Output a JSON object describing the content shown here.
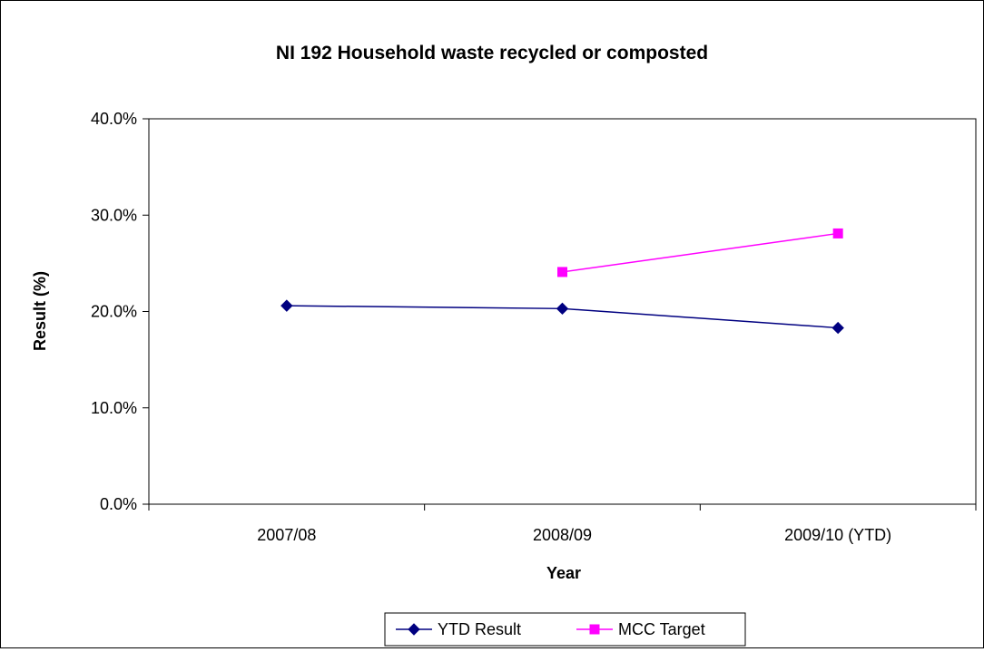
{
  "chart_data": {
    "type": "line",
    "title": "NI 192 Household waste recycled or composted",
    "xlabel": "Year",
    "ylabel": "Result (%)",
    "categories": [
      "2007/08",
      "2008/09",
      "2009/10 (YTD)"
    ],
    "ylim": [
      0,
      0.4
    ],
    "yticks": [
      0,
      0.1,
      0.2,
      0.3,
      0.4
    ],
    "ytick_labels": [
      "0.0%",
      "10.0%",
      "20.0%",
      "30.0%",
      "40.0%"
    ],
    "grid": false,
    "legend_position": "bottom",
    "series": [
      {
        "name": "YTD Result",
        "color": "#000080",
        "marker": "diamond",
        "values": [
          0.206,
          0.203,
          0.183
        ]
      },
      {
        "name": "MCC Target",
        "color": "#FF00FF",
        "marker": "square",
        "values": [
          null,
          0.241,
          0.281
        ]
      }
    ]
  }
}
